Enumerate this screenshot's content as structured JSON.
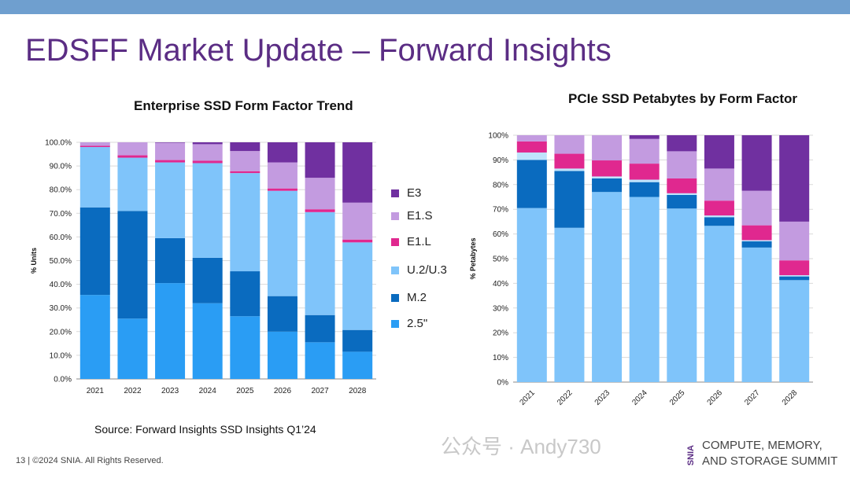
{
  "slide": {
    "title": "EDSFF Market Update – Forward Insights",
    "source": "Source: Forward Insights SSD Insights Q1’24",
    "footer": "13 | ©2024 SNIA. All Rights Reserved.",
    "watermark": "公众号 · Andy730",
    "logo_mark": "SNIA",
    "logo_line1": "COMPUTE, MEMORY,",
    "logo_line2": "AND STORAGE SUMMIT",
    "top_bar_color": "#6f9fcf",
    "title_color": "#5b2d84"
  },
  "legend": [
    {
      "name": "E3",
      "color": "#7030a0"
    },
    {
      "name": "E1.S",
      "color": "#c39be0"
    },
    {
      "name": "E1.L",
      "color": "#e0288f"
    },
    {
      "name": "U.2/U.3",
      "color": "#7fc4fa"
    },
    {
      "name": "M.2",
      "color": "#0a6bbf"
    },
    {
      "name": "2.5\"",
      "color": "#2a9df4"
    }
  ],
  "chart_data": [
    {
      "type": "bar",
      "stacked": true,
      "title": "Enterprise SSD Form Factor Trend",
      "ylabel": "% Units",
      "xlabel": "",
      "ylim": [
        0,
        100
      ],
      "yticks": [
        "0.0%",
        "10.0%",
        "20.0%",
        "30.0%",
        "40.0%",
        "50.0%",
        "60.0%",
        "70.0%",
        "80.0%",
        "90.0%",
        "100.0%"
      ],
      "grid": true,
      "legend": "right",
      "categories": [
        "2021",
        "2022",
        "2023",
        "2024",
        "2025",
        "2026",
        "2027",
        "2028"
      ],
      "series": [
        {
          "name": "2.5\"",
          "color": "#2a9df4",
          "values": [
            35.5,
            25.5,
            40.5,
            32,
            26.5,
            20,
            15.5,
            11.5
          ]
        },
        {
          "name": "M.2",
          "color": "#0a6bbf",
          "values": [
            37,
            45.5,
            19,
            19.2,
            19,
            15,
            11.5,
            9.2
          ]
        },
        {
          "name": "U.2/U.3",
          "color": "#7fc4fa",
          "values": [
            25.5,
            22.5,
            32,
            40,
            41.5,
            44.5,
            43.5,
            37
          ]
        },
        {
          "name": "E1.L",
          "color": "#e0288f",
          "values": [
            0.5,
            1,
            1,
            1,
            0.8,
            1,
            1.2,
            1.2
          ]
        },
        {
          "name": "E1.S",
          "color": "#c39be0",
          "values": [
            1.5,
            5.5,
            7.3,
            7,
            8.5,
            11,
            13.3,
            15.6
          ]
        },
        {
          "name": "E3",
          "color": "#7030a0",
          "values": [
            0,
            0,
            0.2,
            0.8,
            3.7,
            8.5,
            15,
            25.5
          ]
        }
      ]
    },
    {
      "type": "bar",
      "stacked": true,
      "title": "PCIe SSD Petabytes by Form Factor",
      "ylabel": "% Petabytes",
      "xlabel": "",
      "ylim": [
        0,
        100
      ],
      "yticks": [
        "0%",
        "10%",
        "20%",
        "30%",
        "40%",
        "50%",
        "60%",
        "70%",
        "80%",
        "90%",
        "100%"
      ],
      "grid": true,
      "xtick_rotation": -45,
      "categories": [
        "2021",
        "2022",
        "2023",
        "2024",
        "2025",
        "2026",
        "2027",
        "2028"
      ],
      "series": [
        {
          "color": "#7fc4fa",
          "values": [
            70.5,
            62.5,
            77,
            75,
            70.3,
            63.3,
            54.5,
            41.3
          ]
        },
        {
          "color": "#0a6bbf",
          "values": [
            19.5,
            23,
            5.5,
            6,
            5.5,
            3.5,
            2.5,
            1.5
          ]
        },
        {
          "color": "#bfe3fc",
          "values": [
            3,
            1,
            0.8,
            1,
            0.7,
            0.7,
            0.5,
            0.5
          ]
        },
        {
          "color": "#e0288f",
          "values": [
            4.5,
            6,
            6.5,
            6.5,
            6,
            6,
            6,
            6
          ]
        },
        {
          "color": "#c39be0",
          "values": [
            2.5,
            7.5,
            10.2,
            10,
            11,
            13,
            14,
            15.7
          ]
        },
        {
          "color": "#7030a0",
          "values": [
            0,
            0,
            0,
            1.5,
            6.5,
            13.5,
            22.5,
            35
          ]
        }
      ]
    }
  ]
}
